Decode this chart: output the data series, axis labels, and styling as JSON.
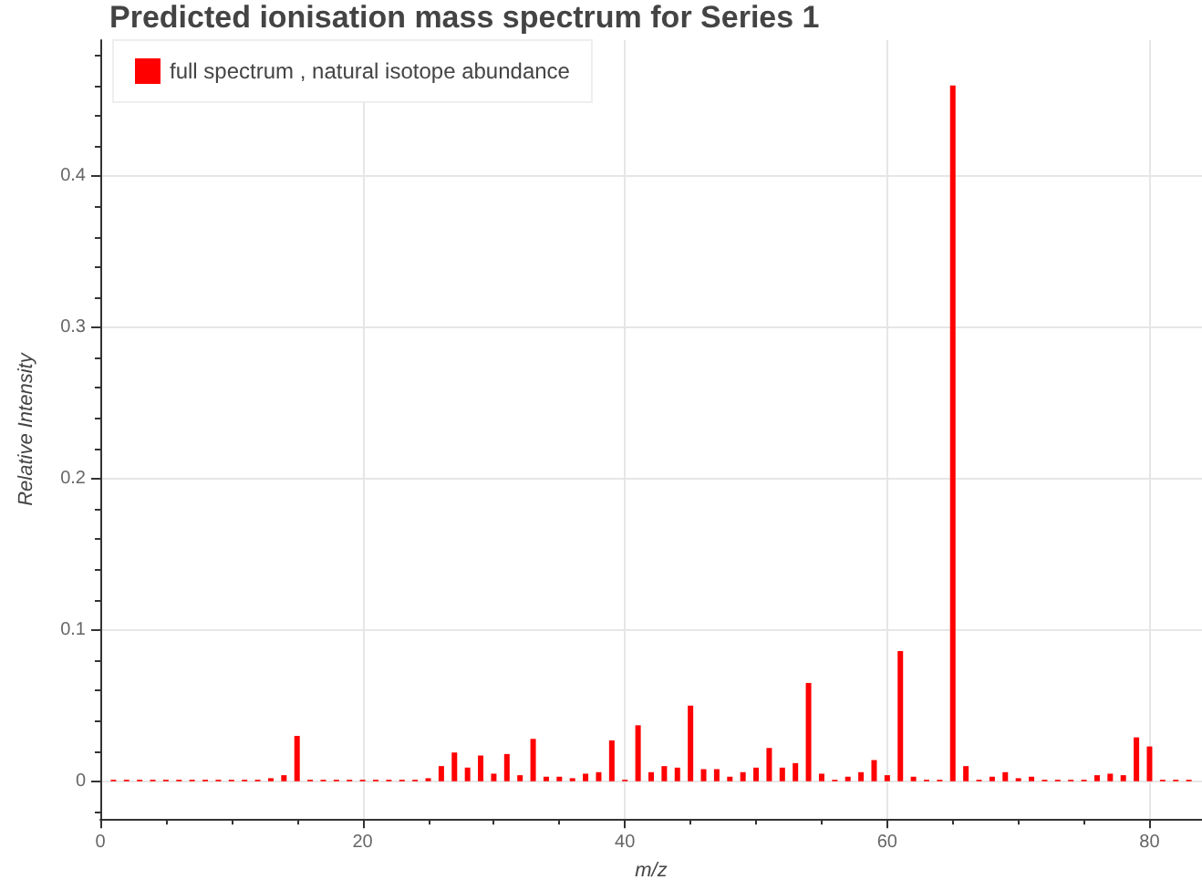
{
  "chart_data": {
    "type": "bar",
    "title": "Predicted ionisation mass spectrum for Series 1",
    "xlabel": "m/z",
    "ylabel": "Relative Intensity",
    "x": [
      1,
      2,
      3,
      4,
      5,
      6,
      7,
      8,
      9,
      10,
      11,
      12,
      13,
      14,
      15,
      16,
      17,
      18,
      19,
      20,
      21,
      22,
      23,
      24,
      25,
      26,
      27,
      28,
      29,
      30,
      31,
      32,
      33,
      34,
      35,
      36,
      37,
      38,
      39,
      40,
      41,
      42,
      43,
      44,
      45,
      46,
      47,
      48,
      49,
      50,
      51,
      52,
      53,
      54,
      55,
      56,
      57,
      58,
      59,
      60,
      61,
      62,
      63,
      64,
      65,
      66,
      67,
      68,
      69,
      70,
      71,
      72,
      73,
      74,
      75,
      76,
      77,
      78,
      79,
      80,
      81,
      82,
      83
    ],
    "series": [
      {
        "name": "full spectrum , natural isotope abundance",
        "color": "#ff0000",
        "values": [
          0.001,
          0.001,
          0.001,
          0.001,
          0.001,
          0.001,
          0.001,
          0.001,
          0.001,
          0.001,
          0.001,
          0.001,
          0.002,
          0.004,
          0.03,
          0.001,
          0.001,
          0.001,
          0.001,
          0.001,
          0.001,
          0.001,
          0.001,
          0.001,
          0.002,
          0.01,
          0.019,
          0.009,
          0.017,
          0.005,
          0.018,
          0.004,
          0.028,
          0.003,
          0.003,
          0.002,
          0.005,
          0.006,
          0.027,
          0.001,
          0.037,
          0.006,
          0.01,
          0.009,
          0.05,
          0.008,
          0.008,
          0.003,
          0.006,
          0.009,
          0.022,
          0.009,
          0.012,
          0.065,
          0.005,
          0.001,
          0.003,
          0.006,
          0.014,
          0.004,
          0.086,
          0.003,
          0.001,
          0.001,
          0.46,
          0.01,
          0.001,
          0.003,
          0.006,
          0.002,
          0.003,
          0.001,
          0.001,
          0.001,
          0.001,
          0.004,
          0.005,
          0.004,
          0.029,
          0.023,
          0.001,
          0.001,
          0.001
        ]
      }
    ],
    "xlim": [
      0,
      84
    ],
    "xticks": [
      0,
      20,
      40,
      60,
      80
    ],
    "ylim": [
      -0.025,
      0.49
    ],
    "yticks": [
      0,
      0.1,
      0.2,
      0.3,
      0.4
    ],
    "grid": true,
    "legend": "top left"
  }
}
